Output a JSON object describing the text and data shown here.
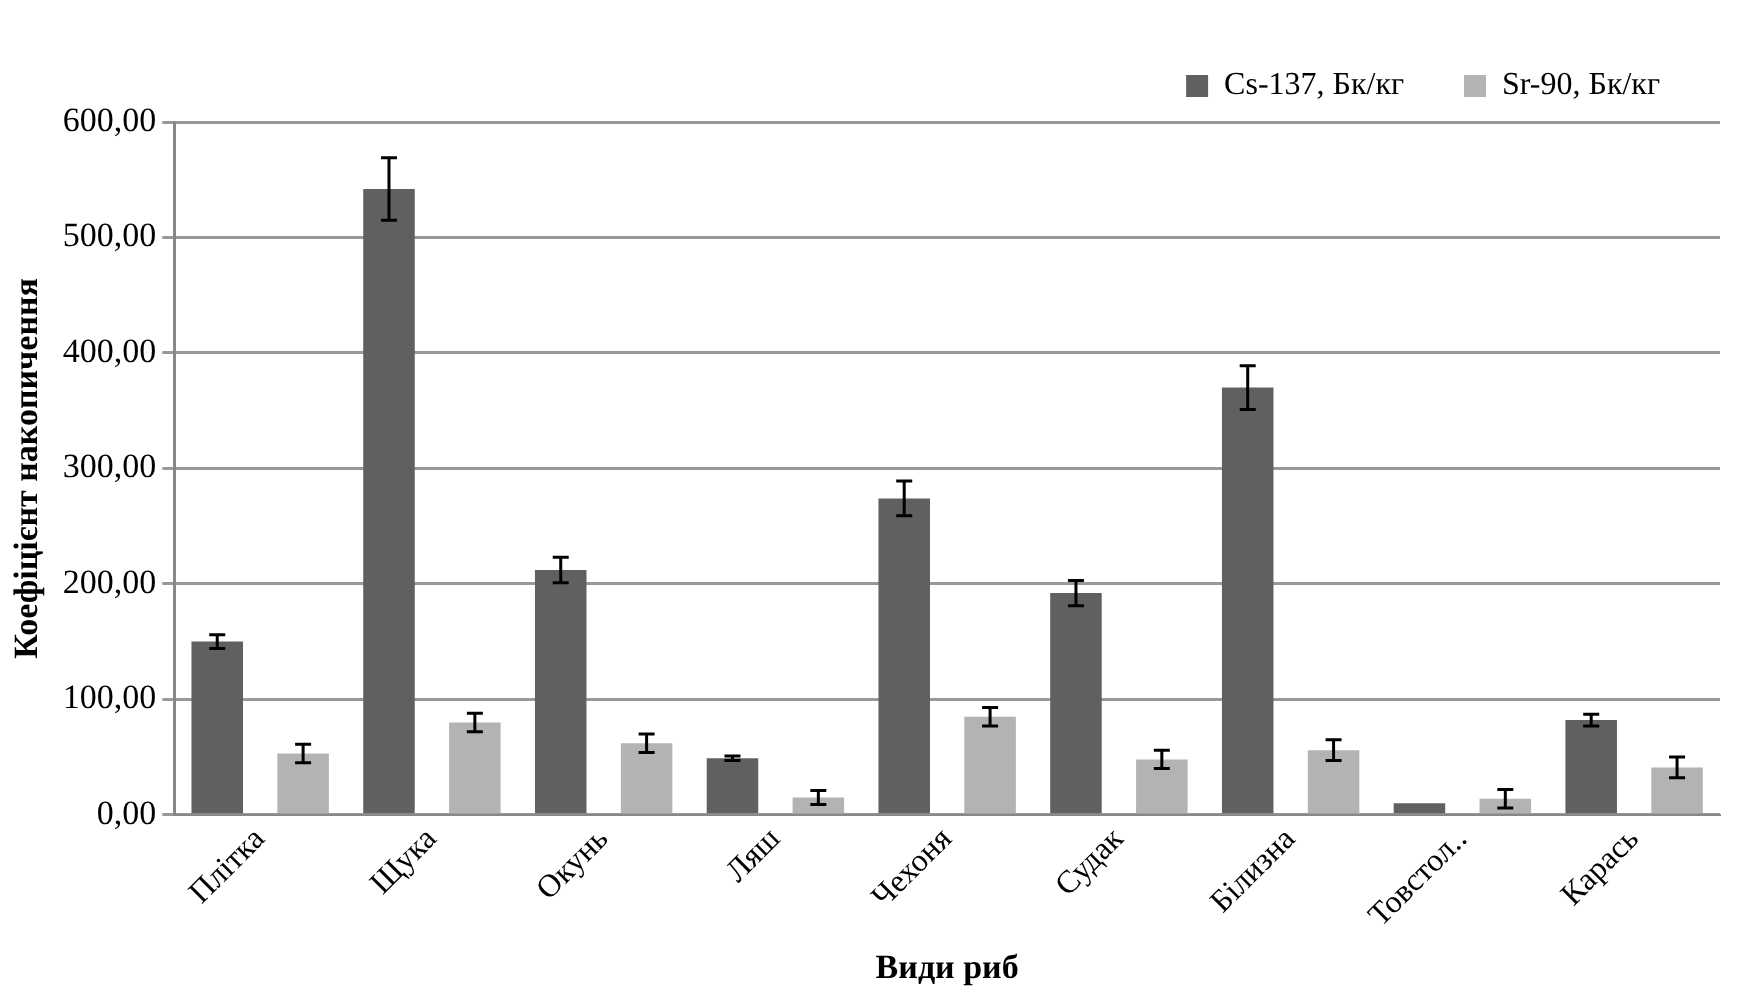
{
  "chart_data": {
    "type": "bar",
    "xlabel": "Види риб",
    "ylabel": "Коефіцієнт накопичення",
    "categories": [
      "Плітка",
      "Щука",
      "Окунь",
      "Ляш",
      "Чехоня",
      "Судак",
      "Білизна",
      "Товстол..",
      "Карась"
    ],
    "series": [
      {
        "name": "Cs-137, Бк/кг",
        "color": "#606060",
        "values": [
          150,
          542,
          212,
          49,
          274,
          192,
          370,
          10,
          82
        ],
        "errors": [
          6,
          27,
          11,
          2,
          15,
          11,
          19,
          null,
          5
        ]
      },
      {
        "name": "Sr-90, Бк/кг",
        "color": "#b3b3b3",
        "values": [
          53,
          80,
          62,
          15,
          85,
          48,
          56,
          14,
          41
        ],
        "errors": [
          8,
          8,
          8,
          6,
          8,
          8,
          9,
          8,
          9
        ]
      }
    ],
    "ylim": [
      0,
      600
    ],
    "yticks": [
      {
        "value": 0,
        "label": "0,00"
      },
      {
        "value": 100,
        "label": "100,00"
      },
      {
        "value": 200,
        "label": "200,00"
      },
      {
        "value": 300,
        "label": "300,00"
      },
      {
        "value": 400,
        "label": "400,00"
      },
      {
        "value": 500,
        "label": "500,00"
      },
      {
        "value": 600,
        "label": "600,00"
      }
    ],
    "grid": "y",
    "legend": "top right"
  }
}
